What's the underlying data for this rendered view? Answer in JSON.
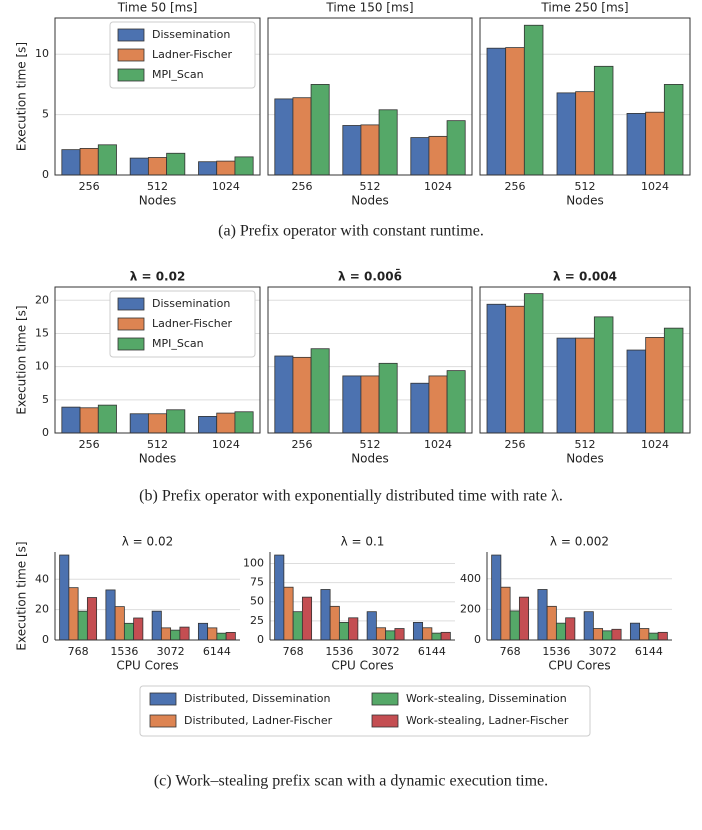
{
  "chart_data": [
    {
      "type": "bar",
      "title": "Time 50 [ms]",
      "y_label": "Execution time [s]",
      "x_label": "Nodes",
      "categories": [
        "256",
        "512",
        "1024"
      ],
      "legend": "upper center",
      "spines": "all",
      "grid": true,
      "ylim": [
        0,
        13
      ],
      "yticks": [
        0,
        5,
        10
      ],
      "ytick_labels": true,
      "series": [
        {
          "name": "Dissemination",
          "color": "#4c72b0",
          "values": [
            2.1,
            1.4,
            1.1
          ]
        },
        {
          "name": "Ladner-Fischer",
          "color": "#dd8452",
          "values": [
            2.2,
            1.45,
            1.15
          ]
        },
        {
          "name": "MPI_Scan",
          "color": "#55a868",
          "values": [
            2.5,
            1.8,
            1.5
          ]
        }
      ]
    },
    {
      "type": "bar",
      "title": "Time 150 [ms]",
      "x_label": "Nodes",
      "categories": [
        "256",
        "512",
        "1024"
      ],
      "spines": "all",
      "grid": true,
      "ylim": [
        0,
        13
      ],
      "yticks": [
        0,
        5,
        10
      ],
      "ytick_labels": false,
      "series": [
        {
          "color": "#4c72b0",
          "values": [
            6.3,
            4.1,
            3.1
          ]
        },
        {
          "color": "#dd8452",
          "values": [
            6.4,
            4.15,
            3.2
          ]
        },
        {
          "color": "#55a868",
          "values": [
            7.5,
            5.4,
            4.5
          ]
        }
      ]
    },
    {
      "type": "bar",
      "title": "Time 250 [ms]",
      "x_label": "Nodes",
      "categories": [
        "256",
        "512",
        "1024"
      ],
      "spines": "all",
      "grid": true,
      "ylim": [
        0,
        13
      ],
      "yticks": [
        0,
        5,
        10
      ],
      "ytick_labels": false,
      "series": [
        {
          "color": "#4c72b0",
          "values": [
            10.5,
            6.8,
            5.1
          ]
        },
        {
          "color": "#dd8452",
          "values": [
            10.55,
            6.9,
            5.2
          ]
        },
        {
          "color": "#55a868",
          "values": [
            12.4,
            9.0,
            7.5
          ]
        }
      ]
    },
    {
      "type": "bar",
      "title": "λ = 0.02",
      "y_label": "Execution time [s]",
      "x_label": "Nodes",
      "categories": [
        "256",
        "512",
        "1024"
      ],
      "legend": "upper center",
      "spines": "all",
      "grid": true,
      "ylim": [
        0,
        22
      ],
      "yticks": [
        0,
        5,
        10,
        15,
        20
      ],
      "ytick_labels": true,
      "series": [
        {
          "name": "Dissemination",
          "color": "#4c72b0",
          "values": [
            3.9,
            2.9,
            2.5
          ]
        },
        {
          "name": "Ladner-Fischer",
          "color": "#dd8452",
          "values": [
            3.8,
            2.9,
            3.0
          ]
        },
        {
          "name": "MPI_Scan",
          "color": "#55a868",
          "values": [
            4.2,
            3.5,
            3.2
          ]
        }
      ]
    },
    {
      "type": "bar",
      "title": "λ = 0.006̄",
      "x_label": "Nodes",
      "categories": [
        "256",
        "512",
        "1024"
      ],
      "spines": "all",
      "grid": true,
      "ylim": [
        0,
        22
      ],
      "yticks": [
        0,
        5,
        10,
        15,
        20
      ],
      "ytick_labels": false,
      "series": [
        {
          "color": "#4c72b0",
          "values": [
            11.6,
            8.6,
            7.5
          ]
        },
        {
          "color": "#dd8452",
          "values": [
            11.4,
            8.6,
            8.6
          ]
        },
        {
          "color": "#55a868",
          "values": [
            12.7,
            10.5,
            9.4
          ]
        }
      ]
    },
    {
      "type": "bar",
      "title": "λ = 0.004",
      "x_label": "Nodes",
      "categories": [
        "256",
        "512",
        "1024"
      ],
      "spines": "all",
      "grid": true,
      "ylim": [
        0,
        22
      ],
      "yticks": [
        0,
        5,
        10,
        15,
        20
      ],
      "ytick_labels": false,
      "series": [
        {
          "color": "#4c72b0",
          "values": [
            19.4,
            14.3,
            12.5
          ]
        },
        {
          "color": "#dd8452",
          "values": [
            19.1,
            14.3,
            14.4
          ]
        },
        {
          "color": "#55a868",
          "values": [
            21.0,
            17.5,
            15.8
          ]
        }
      ]
    },
    {
      "type": "bar",
      "title": "λ = 0.02",
      "y_label": "Execution time [s]",
      "x_label": "CPU Cores",
      "categories": [
        "768",
        "1536",
        "3072",
        "6144"
      ],
      "legend": "below",
      "spines": "left-bottom",
      "grid": true,
      "ylim": [
        0,
        58
      ],
      "yticks": [
        0,
        20,
        40
      ],
      "ytick_labels": true,
      "series": [
        {
          "name": "Distributed, Dissemination",
          "color": "#4c72b0",
          "values": [
            56,
            33,
            19,
            11
          ]
        },
        {
          "name": "Distributed, Ladner-Fischer",
          "color": "#dd8452",
          "values": [
            34.5,
            22,
            8,
            8
          ]
        },
        {
          "name": "Work-stealing, Dissemination",
          "color": "#55a868",
          "values": [
            19,
            11,
            6.5,
            4.5
          ]
        },
        {
          "name": "Work-stealing, Ladner-Fischer",
          "color": "#c44e52",
          "values": [
            28,
            14.5,
            8.5,
            5
          ]
        }
      ]
    },
    {
      "type": "bar",
      "title": "λ = 0.1",
      "x_label": "CPU Cores",
      "categories": [
        "768",
        "1536",
        "3072",
        "6144"
      ],
      "spines": "left-bottom",
      "grid": true,
      "ylim": [
        0,
        115
      ],
      "yticks": [
        0,
        25,
        50,
        75,
        100
      ],
      "ytick_labels": true,
      "series": [
        {
          "color": "#4c72b0",
          "values": [
            111,
            66,
            37,
            23
          ]
        },
        {
          "color": "#dd8452",
          "values": [
            69,
            44,
            16,
            16
          ]
        },
        {
          "color": "#55a868",
          "values": [
            37,
            23,
            12,
            9
          ]
        },
        {
          "color": "#c44e52",
          "values": [
            56,
            29,
            15,
            10
          ]
        }
      ]
    },
    {
      "type": "bar",
      "title": "λ = 0.002",
      "x_label": "CPU Cores",
      "categories": [
        "768",
        "1536",
        "3072",
        "6144"
      ],
      "spines": "left-bottom",
      "grid": true,
      "ylim": [
        0,
        575
      ],
      "yticks": [
        0,
        200,
        400
      ],
      "ytick_labels": true,
      "series": [
        {
          "color": "#4c72b0",
          "values": [
            555,
            330,
            185,
            110
          ]
        },
        {
          "color": "#dd8452",
          "values": [
            345,
            220,
            75,
            75
          ]
        },
        {
          "color": "#55a868",
          "values": [
            190,
            110,
            60,
            45
          ]
        },
        {
          "color": "#c44e52",
          "values": [
            280,
            145,
            70,
            50
          ]
        }
      ]
    }
  ],
  "captions": [
    "(a) Prefix operator with constant runtime.",
    "(b) Prefix operator with exponentially distributed time with rate λ.",
    "(c) Work–stealing prefix scan with a dynamic execution time."
  ]
}
